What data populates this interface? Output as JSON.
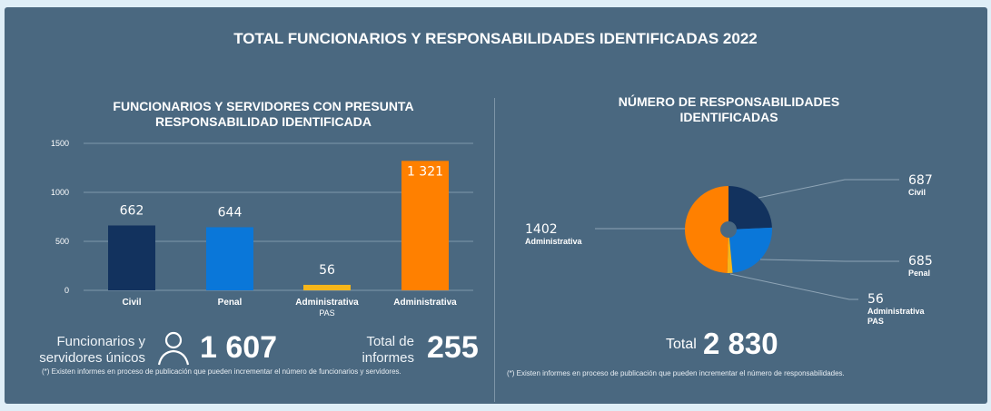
{
  "title": "TOTAL FUNCIONARIOS Y RESPONSABILIDADES IDENTIFICADAS   2022",
  "left": {
    "summary": {
      "unique_label_line1": "Funcionarios y",
      "unique_label_line2": "servidores únicos",
      "unique_value": "1 607",
      "reports_label_line1": "Total de",
      "reports_label_line2": "informes",
      "reports_value": "255",
      "icon": "person-icon"
    },
    "note": "(*) Existen informes en proceso de publicación que pueden incrementar el número de funcionarios y servidores."
  },
  "right": {
    "total_label": "Total",
    "total_value": "2 830",
    "note": "(*) Existen informes en proceso de publicación que pueden incrementar el número de responsabilidades."
  },
  "chart_data": [
    {
      "type": "bar",
      "title": "FUNCIONARIOS Y SERVIDORES CON PRESUNTA RESPONSABILIDAD IDENTIFICADA",
      "categories": [
        "Civil",
        "Penal",
        "Administrativa PAS",
        "Administrativa"
      ],
      "category_lines": [
        [
          "Civil"
        ],
        [
          "Penal"
        ],
        [
          "Administrativa",
          "PAS"
        ],
        [
          "Administrativa"
        ]
      ],
      "values": [
        662,
        644,
        56,
        1321
      ],
      "data_labels": [
        "662",
        "644",
        "56",
        "1 321"
      ],
      "colors": [
        "#12325e",
        "#0a77d9",
        "#f6b61a",
        "#ff8000"
      ],
      "ylim": [
        0,
        1500
      ],
      "yticks": [
        0,
        500,
        1000,
        1500
      ],
      "grid": true
    },
    {
      "type": "pie",
      "title": "NÚMERO DE RESPONSABILIDADES IDENTIFICADAS",
      "labels": [
        "Civil",
        "Penal",
        "Administrativa PAS",
        "Administrativa"
      ],
      "label_lines": [
        [
          "Civil"
        ],
        [
          "Penal"
        ],
        [
          "Administrativa",
          "PAS"
        ],
        [
          "Administrativa"
        ]
      ],
      "values": [
        687,
        685,
        56,
        1402
      ],
      "colors": [
        "#12325e",
        "#0a77d9",
        "#f6b61a",
        "#ff8000"
      ]
    }
  ]
}
